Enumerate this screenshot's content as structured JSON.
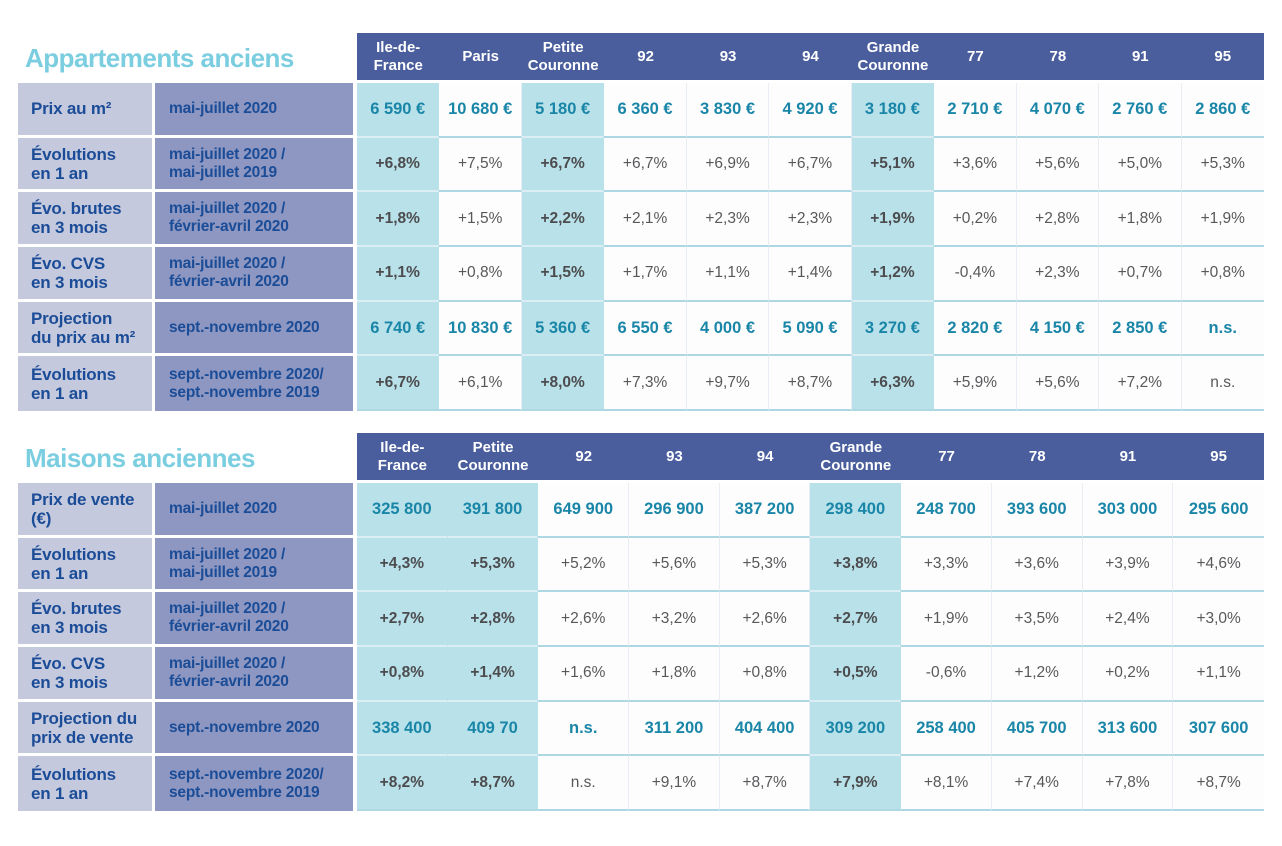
{
  "colors": {
    "header_blue": "#4a5e9d",
    "title_cyan": "#7bcde0",
    "row_label_bg": "#c5c9dd",
    "period_label_bg": "#8e97c1",
    "label_text_blue": "#1b4c97",
    "highlight_cyan": "#b8e1ea",
    "price_teal": "#1a86a7",
    "percent_gray": "#58585a",
    "row_separator_blue": "#aed7e4"
  },
  "chart_data": [
    {
      "type": "table",
      "title": "Appartements anciens",
      "columns": [
        "Ile-de-\nFrance",
        "Paris",
        "Petite\nCouronne",
        "92",
        "93",
        "94",
        "Grande\nCouronne",
        "77",
        "78",
        "91",
        "95"
      ],
      "highlight_columns": [
        "Ile-de-France",
        "Petite Couronne",
        "Grande Couronne"
      ],
      "highlight_col_indexes": [
        0,
        2,
        6
      ],
      "rows": [
        {
          "label": "Prix au m²",
          "period": "mai-juillet 2020",
          "type": "price",
          "values": [
            "6 590 €",
            "10 680 €",
            "5 180 €",
            "6 360 €",
            "3 830 €",
            "4 920 €",
            "3 180 €",
            "2 710 €",
            "4 070 €",
            "2 760 €",
            "2 860 €"
          ]
        },
        {
          "label": "Évolutions\nen 1 an",
          "period": "mai-juillet 2020 /\nmai-juillet 2019",
          "type": "percent",
          "values": [
            "+6,8%",
            "+7,5%",
            "+6,7%",
            "+6,7%",
            "+6,9%",
            "+6,7%",
            "+5,1%",
            "+3,6%",
            "+5,6%",
            "+5,0%",
            "+5,3%"
          ]
        },
        {
          "label": "Évo. brutes\nen 3 mois",
          "period": "mai-juillet 2020 /\nfévrier-avril 2020",
          "type": "percent",
          "values": [
            "+1,8%",
            "+1,5%",
            "+2,2%",
            "+2,1%",
            "+2,3%",
            "+2,3%",
            "+1,9%",
            "+0,2%",
            "+2,8%",
            "+1,8%",
            "+1,9%"
          ]
        },
        {
          "label": "Évo. CVS\nen 3 mois",
          "period": "mai-juillet 2020 /\nfévrier-avril 2020",
          "type": "percent",
          "values": [
            "+1,1%",
            "+0,8%",
            "+1,5%",
            "+1,7%",
            "+1,1%",
            "+1,4%",
            "+1,2%",
            "-0,4%",
            "+2,3%",
            "+0,7%",
            "+0,8%"
          ]
        },
        {
          "label": "Projection\ndu prix au m²",
          "period": "sept.-novembre 2020",
          "type": "price",
          "values": [
            "6 740 €",
            "10 830 €",
            "5 360 €",
            "6 550 €",
            "4 000 €",
            "5 090 €",
            "3 270 €",
            "2 820 €",
            "4 150 €",
            "2 850 €",
            "n.s."
          ]
        },
        {
          "label": "Évolutions\nen 1 an",
          "period": "sept.-novembre 2020/\nsept.-novembre 2019",
          "type": "percent",
          "values": [
            "+6,7%",
            "+6,1%",
            "+8,0%",
            "+7,3%",
            "+9,7%",
            "+8,7%",
            "+6,3%",
            "+5,9%",
            "+5,6%",
            "+7,2%",
            "n.s."
          ]
        }
      ]
    },
    {
      "type": "table",
      "title": "Maisons anciennes",
      "columns": [
        "Ile-de-\nFrance",
        "Petite\nCouronne",
        "92",
        "93",
        "94",
        "Grande\nCouronne",
        "77",
        "78",
        "91",
        "95"
      ],
      "highlight_columns": [
        "Ile-de-France",
        "Petite Couronne",
        "Grande Couronne"
      ],
      "highlight_col_indexes": [
        0,
        1,
        5
      ],
      "rows": [
        {
          "label": "Prix de vente\n(€)",
          "period": "mai-juillet 2020",
          "type": "price",
          "values": [
            "325 800",
            "391 800",
            "649 900",
            "296 900",
            "387 200",
            "298 400",
            "248 700",
            "393 600",
            "303 000",
            "295 600"
          ]
        },
        {
          "label": "Évolutions\nen 1 an",
          "period": "mai-juillet 2020 /\nmai-juillet 2019",
          "type": "percent",
          "values": [
            "+4,3%",
            "+5,3%",
            "+5,2%",
            "+5,6%",
            "+5,3%",
            "+3,8%",
            "+3,3%",
            "+3,6%",
            "+3,9%",
            "+4,6%"
          ]
        },
        {
          "label": "Évo. brutes\nen 3 mois",
          "period": "mai-juillet 2020 /\nfévrier-avril 2020",
          "type": "percent",
          "values": [
            "+2,7%",
            "+2,8%",
            "+2,6%",
            "+3,2%",
            "+2,6%",
            "+2,7%",
            "+1,9%",
            "+3,5%",
            "+2,4%",
            "+3,0%"
          ]
        },
        {
          "label": "Évo. CVS\nen 3 mois",
          "period": "mai-juillet 2020 /\nfévrier-avril 2020",
          "type": "percent",
          "values": [
            "+0,8%",
            "+1,4%",
            "+1,6%",
            "+1,8%",
            "+0,8%",
            "+0,5%",
            "-0,6%",
            "+1,2%",
            "+0,2%",
            "+1,1%"
          ]
        },
        {
          "label": "Projection du\nprix de vente",
          "period": "sept.-novembre 2020",
          "type": "price",
          "values": [
            "338 400",
            "409 70",
            "n.s.",
            "311 200",
            "404 400",
            "309 200",
            "258 400",
            "405 700",
            "313 600",
            "307 600"
          ]
        },
        {
          "label": "Évolutions\nen 1 an",
          "period": "sept.-novembre 2020/\nsept.-novembre 2019",
          "type": "percent",
          "values": [
            "+8,2%",
            "+8,7%",
            "n.s.",
            "+9,1%",
            "+8,7%",
            "+7,9%",
            "+8,1%",
            "+7,4%",
            "+7,8%",
            "+8,7%"
          ]
        }
      ]
    }
  ]
}
